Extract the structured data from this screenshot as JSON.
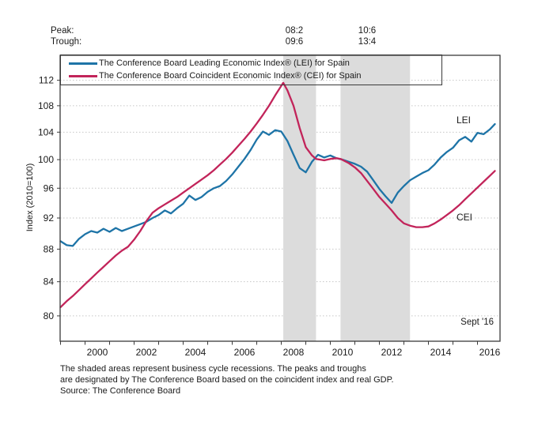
{
  "header": {
    "peak_label": "Peak:",
    "trough_label": "Trough:",
    "recession_marks": [
      {
        "peak": "08:2",
        "trough": "09:6"
      },
      {
        "peak": "10:6",
        "trough": "13:4"
      }
    ]
  },
  "legend": {
    "lei_label": "The Conference Board Leading Economic Index® (LEI) for Spain",
    "cei_label": "The Conference Board Coincident Economic Index® (CEI) for Spain"
  },
  "colors": {
    "lei": "#1e74a7",
    "cei": "#c2245a",
    "recession_band": "#dcdcdc",
    "grid": "#c6c6c6",
    "axis": "#3a3a3a",
    "text": "#1a1a1a"
  },
  "annotations": {
    "lei_line_label": "LEI",
    "cei_line_label": "CEI",
    "latest_label": "Sept '16"
  },
  "footnote": {
    "line1": "The shaded areas represent business cycle recessions. The peaks and troughs",
    "line2": "are designated by The Conference Board based on the coincident index and real GDP.",
    "line3": "Source: The Conference Board"
  },
  "chart_data": {
    "type": "line",
    "title": "",
    "xlabel": "",
    "ylabel": "Index (2010=100)",
    "y_scale": "log",
    "grid": true,
    "legend_position": "top-left-inside",
    "xlim": [
      1999.0,
      2016.92
    ],
    "ylim": [
      77.2,
      116.1
    ],
    "y_ticks": [
      80,
      84,
      88,
      92,
      96,
      100,
      104,
      108,
      112
    ],
    "x_tick_labels": [
      2000,
      2002,
      2004,
      2006,
      2008,
      2010,
      2012,
      2014,
      2016
    ],
    "recession_bands": [
      [
        2008.083,
        2009.417
      ],
      [
        2010.417,
        2013.25
      ]
    ],
    "series": [
      {
        "name": "LEI",
        "points": [
          [
            1999.0,
            89.0
          ],
          [
            1999.25,
            88.5
          ],
          [
            1999.5,
            88.4
          ],
          [
            1999.75,
            89.3
          ],
          [
            2000.0,
            89.9
          ],
          [
            2000.25,
            90.3
          ],
          [
            2000.5,
            90.1
          ],
          [
            2000.75,
            90.6
          ],
          [
            2001.0,
            90.2
          ],
          [
            2001.25,
            90.7
          ],
          [
            2001.5,
            90.3
          ],
          [
            2001.75,
            90.6
          ],
          [
            2002.0,
            90.9
          ],
          [
            2002.25,
            91.2
          ],
          [
            2002.5,
            91.5
          ],
          [
            2002.75,
            92.0
          ],
          [
            2003.0,
            92.4
          ],
          [
            2003.25,
            93.0
          ],
          [
            2003.5,
            92.6
          ],
          [
            2003.75,
            93.3
          ],
          [
            2004.0,
            93.9
          ],
          [
            2004.25,
            95.0
          ],
          [
            2004.5,
            94.4
          ],
          [
            2004.75,
            94.8
          ],
          [
            2005.0,
            95.5
          ],
          [
            2005.25,
            96.0
          ],
          [
            2005.5,
            96.3
          ],
          [
            2005.75,
            97.0
          ],
          [
            2006.0,
            97.9
          ],
          [
            2006.25,
            99.0
          ],
          [
            2006.5,
            100.1
          ],
          [
            2006.75,
            101.4
          ],
          [
            2007.0,
            102.9
          ],
          [
            2007.25,
            104.1
          ],
          [
            2007.5,
            103.6
          ],
          [
            2007.75,
            104.3
          ],
          [
            2008.0,
            104.1
          ],
          [
            2008.25,
            102.7
          ],
          [
            2008.5,
            100.7
          ],
          [
            2008.75,
            98.8
          ],
          [
            2009.0,
            98.2
          ],
          [
            2009.25,
            99.7
          ],
          [
            2009.5,
            100.7
          ],
          [
            2009.75,
            100.3
          ],
          [
            2010.0,
            100.6
          ],
          [
            2010.25,
            100.2
          ],
          [
            2010.5,
            100.0
          ],
          [
            2010.75,
            99.7
          ],
          [
            2011.0,
            99.4
          ],
          [
            2011.25,
            99.0
          ],
          [
            2011.5,
            98.3
          ],
          [
            2011.75,
            97.1
          ],
          [
            2012.0,
            95.9
          ],
          [
            2012.25,
            94.9
          ],
          [
            2012.5,
            94.0
          ],
          [
            2012.75,
            95.4
          ],
          [
            2013.0,
            96.3
          ],
          [
            2013.25,
            97.1
          ],
          [
            2013.5,
            97.6
          ],
          [
            2013.75,
            98.1
          ],
          [
            2014.0,
            98.5
          ],
          [
            2014.25,
            99.3
          ],
          [
            2014.5,
            100.3
          ],
          [
            2014.75,
            101.1
          ],
          [
            2015.0,
            101.7
          ],
          [
            2015.25,
            102.8
          ],
          [
            2015.5,
            103.3
          ],
          [
            2015.75,
            102.6
          ],
          [
            2016.0,
            103.9
          ],
          [
            2016.25,
            103.7
          ],
          [
            2016.5,
            104.4
          ],
          [
            2016.71,
            105.2
          ]
        ]
      },
      {
        "name": "CEI",
        "points": [
          [
            1999.0,
            81.0
          ],
          [
            1999.25,
            81.7
          ],
          [
            1999.5,
            82.3
          ],
          [
            1999.75,
            83.0
          ],
          [
            2000.0,
            83.7
          ],
          [
            2000.25,
            84.4
          ],
          [
            2000.5,
            85.1
          ],
          [
            2000.75,
            85.8
          ],
          [
            2001.0,
            86.5
          ],
          [
            2001.25,
            87.2
          ],
          [
            2001.5,
            87.8
          ],
          [
            2001.75,
            88.3
          ],
          [
            2002.0,
            89.2
          ],
          [
            2002.25,
            90.3
          ],
          [
            2002.5,
            91.6
          ],
          [
            2002.75,
            92.7
          ],
          [
            2003.0,
            93.3
          ],
          [
            2003.25,
            93.8
          ],
          [
            2003.5,
            94.3
          ],
          [
            2003.75,
            94.8
          ],
          [
            2004.0,
            95.4
          ],
          [
            2004.25,
            96.0
          ],
          [
            2004.5,
            96.6
          ],
          [
            2004.75,
            97.2
          ],
          [
            2005.0,
            97.8
          ],
          [
            2005.25,
            98.5
          ],
          [
            2005.5,
            99.3
          ],
          [
            2005.75,
            100.1
          ],
          [
            2006.0,
            101.0
          ],
          [
            2006.25,
            102.0
          ],
          [
            2006.5,
            103.0
          ],
          [
            2006.75,
            104.1
          ],
          [
            2007.0,
            105.3
          ],
          [
            2007.25,
            106.6
          ],
          [
            2007.5,
            108.0
          ],
          [
            2007.75,
            109.6
          ],
          [
            2008.08,
            111.6
          ],
          [
            2008.25,
            110.4
          ],
          [
            2008.5,
            108.0
          ],
          [
            2008.75,
            104.6
          ],
          [
            2009.0,
            101.8
          ],
          [
            2009.25,
            100.6
          ],
          [
            2009.42,
            100.1
          ],
          [
            2009.75,
            99.9
          ],
          [
            2010.0,
            100.1
          ],
          [
            2010.25,
            100.2
          ],
          [
            2010.42,
            100.1
          ],
          [
            2010.75,
            99.5
          ],
          [
            2011.0,
            98.9
          ],
          [
            2011.25,
            98.1
          ],
          [
            2011.5,
            97.0
          ],
          [
            2011.75,
            95.9
          ],
          [
            2012.0,
            94.8
          ],
          [
            2012.25,
            93.9
          ],
          [
            2012.5,
            93.0
          ],
          [
            2012.75,
            92.0
          ],
          [
            2013.0,
            91.3
          ],
          [
            2013.25,
            91.0
          ],
          [
            2013.5,
            90.8
          ],
          [
            2013.75,
            90.8
          ],
          [
            2014.0,
            90.9
          ],
          [
            2014.25,
            91.3
          ],
          [
            2014.5,
            91.8
          ],
          [
            2014.75,
            92.4
          ],
          [
            2015.0,
            93.0
          ],
          [
            2015.25,
            93.7
          ],
          [
            2015.5,
            94.5
          ],
          [
            2015.75,
            95.3
          ],
          [
            2016.0,
            96.1
          ],
          [
            2016.25,
            96.9
          ],
          [
            2016.5,
            97.7
          ],
          [
            2016.71,
            98.4
          ]
        ]
      }
    ]
  }
}
